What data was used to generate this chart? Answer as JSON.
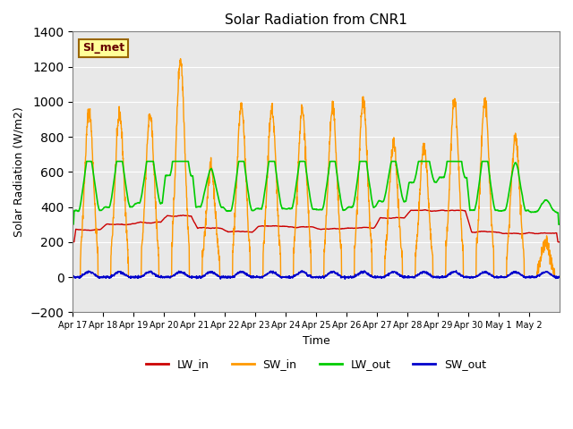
{
  "title": "Solar Radiation from CNR1",
  "xlabel": "Time",
  "ylabel": "Solar Radiation (W/m2)",
  "ylim": [
    -200,
    1400
  ],
  "yticks": [
    -200,
    0,
    200,
    400,
    600,
    800,
    1000,
    1200,
    1400
  ],
  "xtick_labels": [
    "Apr 17",
    "Apr 18",
    "Apr 19",
    "Apr 20",
    "Apr 21",
    "Apr 22",
    "Apr 23",
    "Apr 24",
    "Apr 25",
    "Apr 26",
    "Apr 27",
    "Apr 28",
    "Apr 29",
    "Apr 30",
    "May 1",
    "May 2"
  ],
  "bg_color": "#e8e8e8",
  "fig_color": "#ffffff",
  "line_colors": {
    "LW_in": "#cc0000",
    "SW_in": "#ff9900",
    "LW_out": "#00cc00",
    "SW_out": "#0000cc"
  },
  "annotation_text": "SI_met",
  "annotation_bg": "#ffff99",
  "annotation_border": "#996600",
  "n_days": 16,
  "points_per_day": 144
}
